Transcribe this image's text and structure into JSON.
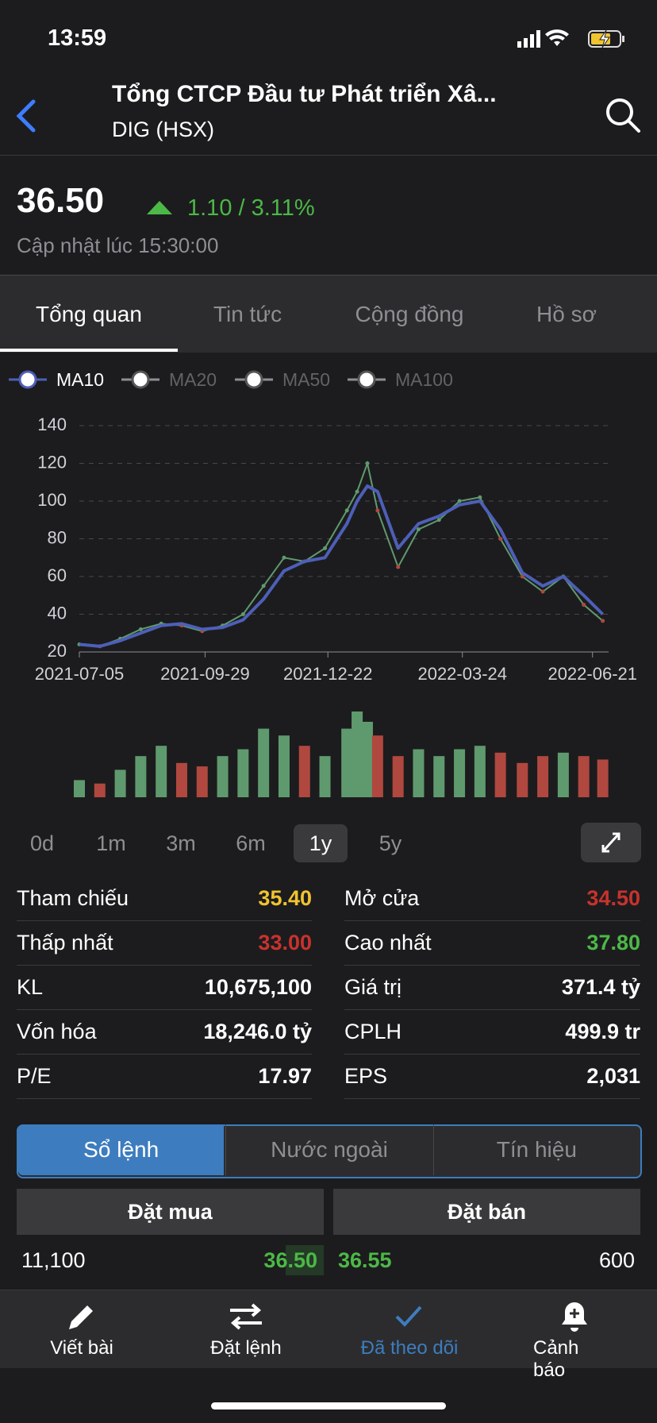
{
  "status_bar": {
    "time": "13:59"
  },
  "header": {
    "title": "Tổng CTCP Đầu tư Phát triển Xâ...",
    "subtitle": "DIG (HSX)"
  },
  "quote": {
    "price": "36.50",
    "change": "1.10 / 3.11%",
    "updated": "Cập nhật lúc 15:30:00"
  },
  "tabs": {
    "items": [
      "Tổng quan",
      "Tin tức",
      "Cộng đồng",
      "Hồ sơ"
    ],
    "selected": 0
  },
  "chart_data": [
    {
      "type": "line",
      "x": [
        "2021-07-05",
        "2021-07-19",
        "2021-08-02",
        "2021-08-16",
        "2021-08-30",
        "2021-09-13",
        "2021-09-27",
        "2021-10-11",
        "2021-10-25",
        "2021-11-08",
        "2021-11-22",
        "2021-12-06",
        "2021-12-20",
        "2022-01-04",
        "2022-01-11",
        "2022-01-18",
        "2022-01-25",
        "2022-02-08",
        "2022-02-22",
        "2022-03-08",
        "2022-03-22",
        "2022-04-05",
        "2022-04-19",
        "2022-05-04",
        "2022-05-18",
        "2022-06-01",
        "2022-06-15",
        "2022-06-28"
      ],
      "values": [
        24,
        23,
        27,
        32,
        35,
        34,
        31,
        34,
        40,
        55,
        70,
        68,
        75,
        95,
        105,
        120,
        95,
        65,
        85,
        90,
        100,
        102,
        80,
        60,
        52,
        60,
        45,
        36.5
      ],
      "color": "#5f9a6e",
      "series": [
        {
          "name": "MA10",
          "color": "#4d5fb8",
          "values": [
            24,
            23,
            26,
            30,
            34,
            35,
            32,
            33,
            37,
            48,
            63,
            68,
            70,
            88,
            100,
            108,
            105,
            75,
            88,
            92,
            98,
            100,
            85,
            62,
            55,
            60,
            50,
            40
          ]
        }
      ],
      "inactive_series": [
        "MA20",
        "MA50",
        "MA100"
      ],
      "xlim": [
        "2021-07-05",
        "2022-07-02"
      ],
      "xticks": [
        "2021-07-05",
        "2021-09-29",
        "2021-12-22",
        "2022-03-24",
        "2022-06-21"
      ],
      "ylim": [
        20,
        140
      ],
      "yticks": [
        20,
        40,
        60,
        80,
        100,
        120,
        140
      ],
      "grid": true
    },
    {
      "type": "bar",
      "x": [
        "2021-07-05",
        "2021-07-19",
        "2021-08-02",
        "2021-08-16",
        "2021-08-30",
        "2021-09-13",
        "2021-09-27",
        "2021-10-11",
        "2021-10-25",
        "2021-11-08",
        "2021-11-22",
        "2021-12-06",
        "2021-12-20",
        "2022-01-04",
        "2022-01-11",
        "2022-01-18",
        "2022-01-25",
        "2022-02-08",
        "2022-02-22",
        "2022-03-08",
        "2022-03-22",
        "2022-04-05",
        "2022-04-19",
        "2022-05-04",
        "2022-05-18",
        "2022-06-01",
        "2022-06-15",
        "2022-06-28"
      ],
      "values": [
        5,
        4,
        8,
        12,
        15,
        10,
        9,
        12,
        14,
        20,
        18,
        15,
        12,
        20,
        25,
        22,
        18,
        12,
        14,
        12,
        14,
        15,
        13,
        10,
        12,
        13,
        12,
        11
      ],
      "up_color": "#5f9a6e",
      "down_color": "#b0483f",
      "xlim": [
        "2021-07-05",
        "2022-07-02"
      ]
    }
  ],
  "periods": {
    "items": [
      "0d",
      "1m",
      "3m",
      "6m",
      "1y",
      "5y"
    ],
    "selected": 4
  },
  "stats": [
    {
      "label": "Tham chiếu",
      "value": "35.40",
      "color": "#f0c330"
    },
    {
      "label": "Mở cửa",
      "value": "34.50",
      "color": "#c9322d"
    },
    {
      "label": "Thấp nhất",
      "value": "33.00",
      "color": "#c9322d"
    },
    {
      "label": "Cao nhất",
      "value": "37.80",
      "color": "#4cb847"
    },
    {
      "label": "KL",
      "value": "10,675,100",
      "color": "#ffffff"
    },
    {
      "label": "Giá trị",
      "value": "371.4 tỷ",
      "color": "#ffffff"
    },
    {
      "label": "Vốn hóa",
      "value": "18,246.0 tỷ",
      "color": "#ffffff"
    },
    {
      "label": "CPLH",
      "value": "499.9 tr",
      "color": "#ffffff"
    },
    {
      "label": "P/E",
      "value": "17.97",
      "color": "#ffffff"
    },
    {
      "label": "EPS",
      "value": "2,031",
      "color": "#ffffff"
    }
  ],
  "order_tabs": {
    "items": [
      "Sổ lệnh",
      "Nước ngoài",
      "Tín hiệu"
    ],
    "selected": 0
  },
  "order_book": {
    "headers": [
      "Đặt mua",
      "Đặt bán"
    ],
    "rows": [
      {
        "bid_volume": "11,100",
        "bid_price": "36.50",
        "ask_price": "36.55",
        "ask_volume": "600"
      }
    ]
  },
  "nav": {
    "items": [
      "Viết bài",
      "Đặt lệnh",
      "Đã theo dõi",
      "Cảnh báo"
    ],
    "active": 2
  }
}
